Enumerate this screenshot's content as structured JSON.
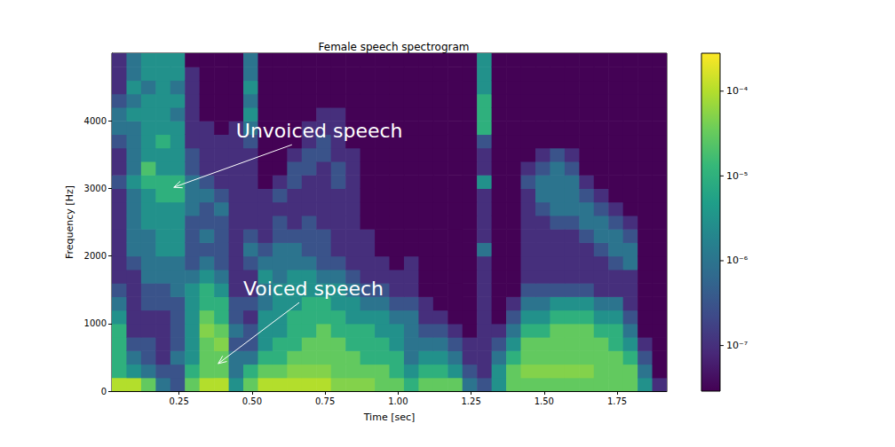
{
  "chart_data": {
    "type": "heatmap",
    "title": "Female speech spectrogram",
    "x_label": "Time [sec]",
    "y_label": "Frequency [Hz]",
    "color": "viridis",
    "grid": false,
    "xlim": [
      0.02,
      1.92
    ],
    "xticks": [
      0.25,
      {
        "value": 0.5,
        "label": "0.50"
      },
      0.75,
      {
        "value": 1,
        "label": "1.00"
      },
      1.25,
      {
        "value": 1.5,
        "label": "1.50"
      },
      1.75
    ],
    "ylim": [
      0,
      5000
    ],
    "yticks": [
      0,
      1000,
      2000,
      3000,
      4000
    ],
    "colorbar": {
      "range": [
        2.9e-08,
        0.00028
      ],
      "log": true,
      "ticks": [
        {
          "value": 0.0001,
          "label": "10⁻⁴"
        },
        {
          "value": 1e-05,
          "label": "10⁻⁵"
        },
        {
          "value": 1e-06,
          "label": "10⁻⁶"
        },
        {
          "value": 1e-07,
          "label": "10⁻⁷"
        }
      ]
    },
    "annotations": [
      {
        "text": "Unvoiced speech",
        "xy": [
          0.232,
          3016
        ],
        "xytext": [
          0.445,
          3856
        ]
      },
      {
        "text": "Voiced speech",
        "xy": [
          0.384,
          407
        ],
        "xytext": [
          0.47,
          1521
        ]
      }
    ],
    "time_bins": [
      0.02,
      0.07,
      0.12,
      0.17,
      0.22,
      0.27,
      0.32,
      0.37,
      0.42,
      0.47,
      0.52,
      0.57,
      0.62,
      0.67,
      0.72,
      0.77,
      0.82,
      0.87,
      0.92,
      0.97,
      1.02,
      1.07,
      1.12,
      1.17,
      1.22,
      1.27,
      1.32,
      1.37,
      1.42,
      1.47,
      1.52,
      1.57,
      1.62,
      1.67,
      1.72,
      1.77,
      1.82,
      1.87,
      1.92
    ],
    "frequency_bins": [
      0,
      200,
      400,
      600,
      800,
      1000,
      1200,
      1400,
      1600,
      1800,
      2000,
      2200,
      2400,
      2600,
      2800,
      3000,
      3200,
      3400,
      3600,
      3800,
      4000,
      4200,
      4400,
      4600,
      4800,
      5000
    ],
    "power": [
      [
        0.0001,
        1e-05,
        1e-05,
        1e-05,
        1e-05,
        3e-06,
        1e-06,
        3e-07,
        1e-07,
        1e-07,
        1e-07,
        1e-07,
        1e-07,
        1e-07,
        1e-07,
        3e-07,
        1e-07,
        1e-07,
        3e-07,
        1e-06,
        1e-06,
        3e-07,
        1e-07,
        1e-07,
        1e-07
      ],
      [
        0.0001,
        3e-06,
        1e-06,
        3e-07,
        1e-07,
        1e-07,
        1e-07,
        1e-07,
        1e-07,
        3e-07,
        1e-06,
        1e-06,
        1e-06,
        1e-06,
        1e-06,
        3e-06,
        1e-06,
        1e-06,
        1e-06,
        1e-06,
        3e-06,
        1e-06,
        3e-06,
        1e-06,
        1e-06
      ],
      [
        3e-05,
        1e-06,
        3e-07,
        3e-07,
        1e-07,
        1e-07,
        3e-07,
        3e-07,
        1e-06,
        1e-06,
        1e-06,
        1e-06,
        3e-06,
        3e-06,
        3e-06,
        1e-05,
        2e-05,
        3e-06,
        3e-06,
        3e-06,
        3e-06,
        3e-06,
        1e-06,
        3e-06,
        3e-06
      ],
      [
        1e-06,
        3e-07,
        1e-07,
        1e-07,
        1e-07,
        1e-07,
        3e-07,
        3e-07,
        1e-06,
        1e-06,
        3e-06,
        3e-06,
        3e-06,
        3e-06,
        1e-05,
        1e-05,
        3e-06,
        3e-06,
        1e-05,
        3e-06,
        3e-06,
        3e-06,
        3e-06,
        3e-06,
        3e-06
      ],
      [
        3e-07,
        3e-07,
        1e-06,
        3e-07,
        3e-07,
        3e-07,
        3e-07,
        1e-06,
        1e-06,
        1e-06,
        3e-06,
        3e-06,
        3e-06,
        3e-06,
        1e-05,
        1e-05,
        3e-06,
        3e-06,
        3e-06,
        3e-06,
        1e-06,
        3e-06,
        1e-06,
        3e-06,
        3e-06
      ],
      [
        3e-05,
        1e-05,
        3e-06,
        3e-06,
        3e-06,
        3e-06,
        3e-06,
        3e-06,
        1e-06,
        3e-07,
        3e-07,
        3e-07,
        3e-07,
        1e-06,
        1e-06,
        1e-06,
        3e-07,
        3e-07,
        1e-07,
        1e-07,
        1e-07,
        1e-07,
        1e-07,
        1e-07,
        3e-08
      ],
      [
        0.0001,
        3e-05,
        3e-05,
        3e-05,
        5e-05,
        3e-05,
        1e-05,
        1e-05,
        3e-06,
        1e-06,
        3e-07,
        1e-06,
        3e-07,
        3e-07,
        1e-06,
        3e-07,
        1e-07,
        1e-07,
        1e-07,
        1e-07,
        3e-08,
        3e-08,
        3e-08,
        3e-08,
        3e-08
      ],
      [
        0.0001,
        3e-05,
        3e-05,
        5e-05,
        3e-05,
        1e-05,
        1e-05,
        3e-06,
        1e-06,
        3e-07,
        3e-07,
        3e-07,
        3e-07,
        1e-06,
        3e-07,
        1e-07,
        1e-07,
        1e-07,
        1e-07,
        3e-08,
        3e-08,
        3e-08,
        3e-08,
        3e-08,
        3e-08
      ],
      [
        3e-06,
        1e-06,
        1e-06,
        3e-07,
        1e-06,
        3e-07,
        3e-07,
        1e-07,
        1e-07,
        1e-07,
        1e-07,
        1e-07,
        1e-07,
        1e-07,
        1e-07,
        1e-07,
        1e-07,
        1e-07,
        1e-07,
        1e-07,
        3e-08,
        3e-08,
        3e-08,
        3e-08,
        3e-08
      ],
      [
        3e-05,
        1e-05,
        1e-06,
        3e-07,
        3e-07,
        1e-07,
        3e-07,
        1e-07,
        1e-07,
        3e-07,
        1e-06,
        3e-07,
        1e-07,
        1e-07,
        1e-07,
        1e-07,
        1e-07,
        1e-07,
        3e-07,
        1e-06,
        3e-06,
        1e-06,
        3e-06,
        1e-06,
        1e-06
      ],
      [
        0.0001,
        3e-05,
        1e-05,
        3e-06,
        3e-06,
        3e-06,
        1e-06,
        1e-06,
        3e-06,
        1e-06,
        3e-07,
        1e-07,
        1e-07,
        1e-07,
        1e-07,
        3e-08,
        3e-08,
        3e-08,
        3e-08,
        3e-08,
        3e-08,
        3e-08,
        3e-08,
        3e-08,
        3e-08
      ],
      [
        0.0001,
        3e-05,
        1e-05,
        1e-05,
        3e-06,
        3e-06,
        3e-06,
        3e-06,
        1e-06,
        1e-06,
        1e-06,
        3e-07,
        3e-07,
        1e-07,
        3e-07,
        1e-07,
        3e-08,
        3e-08,
        3e-08,
        3e-08,
        3e-08,
        3e-08,
        3e-08,
        3e-08,
        3e-08
      ],
      [
        0.0001,
        5e-05,
        3e-05,
        1e-05,
        1e-05,
        1e-05,
        3e-06,
        3e-06,
        3e-06,
        1e-06,
        1e-06,
        3e-07,
        1e-07,
        1e-07,
        1e-07,
        3e-07,
        3e-07,
        1e-07,
        3e-08,
        3e-08,
        3e-08,
        3e-08,
        3e-08,
        3e-08,
        3e-08
      ],
      [
        0.0001,
        5e-05,
        3e-05,
        3e-05,
        1e-05,
        1e-05,
        1e-05,
        3e-06,
        3e-06,
        1e-06,
        3e-07,
        3e-07,
        3e-07,
        1e-07,
        1e-07,
        1e-07,
        3e-07,
        3e-07,
        1e-07,
        1e-07,
        3e-08,
        3e-08,
        3e-08,
        3e-08,
        3e-08
      ],
      [
        0.0001,
        5e-05,
        3e-05,
        3e-05,
        3e-05,
        1e-05,
        1e-05,
        3e-06,
        1e-06,
        3e-07,
        3e-07,
        3e-07,
        1e-07,
        1e-07,
        1e-07,
        1e-07,
        1e-07,
        3e-07,
        3e-07,
        1e-07,
        1e-07,
        3e-08,
        3e-08,
        3e-08,
        3e-08
      ],
      [
        5e-05,
        3e-05,
        3e-05,
        3e-05,
        1e-05,
        1e-05,
        3e-06,
        3e-06,
        1e-06,
        3e-07,
        1e-07,
        1e-07,
        1e-07,
        1e-07,
        1e-07,
        3e-07,
        3e-07,
        1e-07,
        1e-07,
        1e-07,
        1e-07,
        3e-08,
        3e-08,
        3e-08,
        3e-08
      ],
      [
        5e-05,
        3e-05,
        3e-05,
        1e-05,
        1e-05,
        3e-06,
        3e-06,
        1e-06,
        3e-07,
        1e-07,
        1e-07,
        1e-07,
        1e-07,
        1e-07,
        1e-07,
        1e-07,
        1e-07,
        1e-07,
        3e-08,
        3e-08,
        3e-08,
        3e-08,
        3e-08,
        3e-08,
        3e-08
      ],
      [
        5e-05,
        3e-05,
        1e-05,
        1e-05,
        1e-05,
        3e-06,
        1e-06,
        3e-07,
        1e-07,
        1e-07,
        1e-07,
        1e-07,
        3e-08,
        3e-08,
        3e-08,
        3e-08,
        3e-08,
        3e-08,
        3e-08,
        3e-08,
        3e-08,
        3e-08,
        3e-08,
        3e-08,
        3e-08
      ],
      [
        3e-05,
        3e-05,
        1e-05,
        1e-05,
        3e-06,
        3e-06,
        1e-06,
        3e-07,
        1e-07,
        1e-07,
        3e-08,
        3e-08,
        3e-08,
        3e-08,
        3e-08,
        3e-08,
        3e-08,
        3e-08,
        3e-08,
        3e-08,
        3e-08,
        3e-08,
        3e-08,
        3e-08,
        3e-08
      ],
      [
        3e-05,
        1e-05,
        1e-05,
        3e-06,
        3e-06,
        1e-06,
        3e-07,
        1e-07,
        1e-07,
        3e-08,
        3e-08,
        3e-08,
        3e-08,
        3e-08,
        3e-08,
        3e-08,
        3e-08,
        3e-08,
        3e-08,
        3e-08,
        3e-08,
        3e-08,
        3e-08,
        3e-08,
        3e-08
      ],
      [
        1e-05,
        3e-06,
        1e-06,
        1e-06,
        1e-06,
        1e-06,
        3e-07,
        1e-07,
        1e-07,
        1e-07,
        3e-08,
        3e-08,
        3e-08,
        3e-08,
        3e-08,
        3e-08,
        3e-08,
        3e-08,
        3e-08,
        3e-08,
        3e-08,
        3e-08,
        3e-08,
        3e-08,
        3e-08
      ],
      [
        3e-05,
        1e-05,
        3e-06,
        1e-06,
        3e-07,
        1e-07,
        1e-07,
        3e-08,
        3e-08,
        3e-08,
        3e-08,
        3e-08,
        3e-08,
        3e-08,
        3e-08,
        3e-08,
        3e-08,
        3e-08,
        3e-08,
        3e-08,
        3e-08,
        3e-08,
        3e-08,
        3e-08,
        3e-08
      ],
      [
        3e-05,
        1e-05,
        3e-06,
        1e-06,
        3e-07,
        1e-07,
        3e-08,
        3e-08,
        3e-08,
        3e-08,
        3e-08,
        3e-08,
        3e-08,
        3e-08,
        3e-08,
        3e-08,
        3e-08,
        3e-08,
        3e-08,
        3e-08,
        3e-08,
        3e-08,
        3e-08,
        3e-08,
        3e-08
      ],
      [
        3e-05,
        3e-06,
        1e-06,
        3e-07,
        1e-07,
        3e-08,
        3e-08,
        3e-08,
        3e-08,
        3e-08,
        3e-08,
        3e-08,
        3e-08,
        3e-08,
        3e-08,
        3e-08,
        3e-08,
        3e-08,
        3e-08,
        3e-08,
        3e-08,
        3e-08,
        3e-08,
        3e-08,
        3e-08
      ],
      [
        1e-06,
        3e-07,
        1e-07,
        1e-07,
        3e-08,
        3e-08,
        3e-08,
        3e-08,
        3e-08,
        3e-08,
        3e-08,
        3e-08,
        3e-08,
        3e-08,
        3e-08,
        3e-08,
        3e-08,
        3e-08,
        3e-08,
        3e-08,
        3e-08,
        3e-08,
        3e-08,
        3e-08,
        3e-08
      ],
      [
        3e-07,
        1e-07,
        1e-07,
        1e-07,
        1e-07,
        1e-07,
        1e-07,
        1e-07,
        1e-07,
        1e-07,
        1e-06,
        1e-07,
        1e-07,
        1e-07,
        1e-07,
        3e-06,
        1e-07,
        1e-07,
        3e-07,
        1e-05,
        1e-05,
        1e-05,
        3e-06,
        3e-06,
        3e-06
      ],
      [
        3e-06,
        3e-06,
        1e-06,
        3e-07,
        1e-07,
        3e-08,
        3e-08,
        3e-08,
        3e-08,
        3e-08,
        3e-08,
        3e-08,
        3e-08,
        3e-08,
        3e-08,
        3e-08,
        3e-08,
        3e-08,
        3e-08,
        3e-08,
        3e-08,
        3e-08,
        3e-08,
        3e-08,
        3e-08
      ],
      [
        3e-05,
        3e-05,
        1e-05,
        3e-06,
        1e-06,
        3e-07,
        1e-07,
        3e-08,
        3e-08,
        3e-08,
        3e-08,
        3e-08,
        3e-08,
        3e-08,
        3e-08,
        3e-08,
        3e-08,
        3e-08,
        3e-08,
        3e-08,
        3e-08,
        3e-08,
        3e-08,
        3e-08,
        3e-08
      ],
      [
        3e-05,
        5e-05,
        3e-05,
        3e-05,
        1e-05,
        3e-06,
        1e-06,
        3e-07,
        1e-07,
        1e-07,
        1e-07,
        1e-07,
        1e-07,
        1e-07,
        1e-07,
        3e-07,
        1e-07,
        3e-08,
        3e-08,
        3e-08,
        3e-08,
        3e-08,
        3e-08,
        3e-08,
        3e-08
      ],
      [
        3e-05,
        5e-05,
        3e-05,
        3e-05,
        1e-05,
        3e-06,
        1e-06,
        3e-07,
        1e-07,
        1e-07,
        1e-07,
        1e-07,
        1e-07,
        3e-07,
        1e-06,
        1e-06,
        3e-07,
        1e-07,
        3e-08,
        3e-08,
        3e-08,
        3e-08,
        3e-08,
        3e-08,
        3e-08
      ],
      [
        3e-05,
        5e-05,
        3e-05,
        3e-05,
        3e-05,
        1e-05,
        3e-06,
        3e-07,
        1e-07,
        1e-07,
        1e-07,
        1e-07,
        3e-07,
        1e-06,
        1e-06,
        1e-06,
        1e-06,
        3e-07,
        3e-08,
        3e-08,
        3e-08,
        3e-08,
        3e-08,
        3e-08,
        3e-08
      ],
      [
        3e-05,
        5e-05,
        3e-05,
        3e-05,
        3e-05,
        1e-05,
        3e-06,
        3e-07,
        1e-07,
        1e-07,
        1e-07,
        1e-07,
        3e-07,
        1e-06,
        1e-06,
        1e-06,
        3e-07,
        1e-07,
        3e-08,
        3e-08,
        3e-08,
        3e-08,
        3e-08,
        3e-08,
        3e-08
      ],
      [
        3e-05,
        5e-05,
        3e-05,
        3e-05,
        3e-05,
        1e-05,
        3e-06,
        3e-07,
        1e-07,
        1e-07,
        1e-07,
        3e-07,
        1e-06,
        1e-06,
        3e-07,
        1e-07,
        3e-08,
        3e-08,
        3e-08,
        3e-08,
        3e-08,
        3e-08,
        3e-08,
        3e-08,
        3e-08
      ],
      [
        3e-05,
        3e-05,
        3e-05,
        3e-05,
        1e-05,
        3e-06,
        1e-06,
        1e-07,
        1e-07,
        1e-07,
        3e-07,
        1e-06,
        1e-06,
        3e-07,
        1e-07,
        3e-08,
        3e-08,
        3e-08,
        3e-08,
        3e-08,
        3e-08,
        3e-08,
        3e-08,
        3e-08,
        3e-08
      ],
      [
        3e-05,
        3e-05,
        3e-05,
        1e-05,
        1e-05,
        3e-06,
        1e-06,
        1e-07,
        1e-07,
        3e-07,
        1e-06,
        1e-06,
        3e-07,
        1e-07,
        3e-08,
        3e-08,
        3e-08,
        3e-08,
        3e-08,
        3e-08,
        3e-08,
        3e-08,
        3e-08,
        3e-08,
        3e-08
      ],
      [
        3e-05,
        3e-05,
        1e-05,
        3e-06,
        1e-06,
        3e-07,
        1e-07,
        1e-07,
        1e-07,
        1e-06,
        1e-06,
        3e-07,
        1e-07,
        3e-08,
        3e-08,
        3e-08,
        3e-08,
        3e-08,
        3e-08,
        3e-08,
        3e-08,
        3e-08,
        3e-08,
        3e-08,
        3e-08
      ],
      [
        3e-06,
        1e-06,
        3e-07,
        1e-07,
        3e-08,
        3e-08,
        3e-08,
        3e-08,
        3e-08,
        3e-08,
        3e-08,
        3e-08,
        3e-08,
        3e-08,
        3e-08,
        3e-08,
        3e-08,
        3e-08,
        3e-08,
        3e-08,
        3e-08,
        3e-08,
        3e-08,
        3e-08,
        3e-08
      ],
      [
        1e-07,
        3e-08,
        3e-08,
        3e-08,
        3e-08,
        3e-08,
        3e-08,
        3e-08,
        3e-08,
        3e-08,
        3e-08,
        3e-08,
        3e-08,
        3e-08,
        3e-08,
        3e-08,
        3e-08,
        3e-08,
        3e-08,
        3e-08,
        3e-08,
        3e-08,
        3e-08,
        3e-08,
        3e-08
      ]
    ]
  }
}
